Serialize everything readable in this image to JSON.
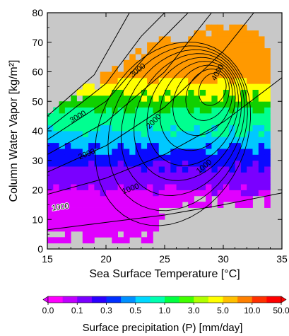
{
  "chart_data": {
    "type": "heatmap",
    "xlabel": "Sea Surface Temperature [°C]",
    "ylabel": "Column Water Vapor [kg/m²]",
    "xlim": [
      15,
      35
    ],
    "ylim": [
      0,
      80
    ],
    "x_ticks": [
      15,
      20,
      25,
      30,
      35
    ],
    "y_ticks": [
      0,
      10,
      20,
      30,
      40,
      50,
      60,
      70,
      80
    ],
    "background_color": "#c8c8c8",
    "grid": false,
    "shaded_field": {
      "variable": "Surface precipitation (P)",
      "description_of_pattern": "precipitation increases with column water vapor; <0.1 mm/day below ~20 kg/m2, rising through 1-3 mm/day near 40-50 kg/m2 to >10 mm/day above ~58 kg/m2",
      "cwv_thresholds_by_class": [
        {
          "class": "0.0-0.1",
          "cwv_min": 0
        },
        {
          "class": "0.1-0.3",
          "cwv_min": 20
        },
        {
          "class": "0.3-0.5",
          "cwv_min": 28
        },
        {
          "class": "0.5-1.0",
          "cwv_min": 34
        },
        {
          "class": "1.0-3.0",
          "cwv_min": 40
        },
        {
          "class": "3.0-5.0",
          "cwv_min": 47
        },
        {
          "class": "5.0-10.0",
          "cwv_min": 52
        },
        {
          "class": "10.0-50.0",
          "cwv_min": 57
        }
      ],
      "data_extent": "SST 15-34 °C; upper CWV limit ~47 kg/m2 at 15 °C rising to ~75 kg/m2 at 33 °C; data ends above ~25 °C at CWV < ~15 kg/m2"
    },
    "colorbar": {
      "label": "Surface precipitation (P) [mm/day]",
      "tick_labels": [
        "0.0",
        "0.1",
        "0.3",
        "0.5",
        "1.0",
        "3.0",
        "5.0",
        "10.0",
        "50.0"
      ],
      "colors": [
        "#e000ff",
        "#7a00ff",
        "#0a0aff",
        "#00c8ff",
        "#00ff90",
        "#10d000",
        "#ffff00",
        "#ff9900",
        "#ff0000"
      ]
    },
    "contours_relative_humidity_curves": [
      {
        "label": "1000",
        "points": [
          [
            15,
            6.5
          ],
          [
            20,
            9
          ],
          [
            25,
            11.5
          ],
          [
            30,
            15
          ],
          [
            35,
            19
          ]
        ]
      },
      {
        "label": "2000",
        "points": [
          [
            15,
            18.5
          ],
          [
            20,
            24
          ],
          [
            25,
            32
          ],
          [
            30,
            43
          ],
          [
            35,
            58
          ]
        ]
      },
      {
        "label": "3000",
        "points": [
          [
            15,
            26
          ],
          [
            20,
            35
          ],
          [
            25,
            48
          ],
          [
            30,
            67
          ],
          [
            33,
            82
          ]
        ]
      },
      {
        "label": "",
        "points": [
          [
            15,
            32
          ],
          [
            20,
            43
          ],
          [
            25,
            60
          ],
          [
            29,
            80
          ]
        ]
      },
      {
        "label": "",
        "points": [
          [
            15,
            37
          ],
          [
            20,
            50
          ],
          [
            24,
            68
          ],
          [
            27,
            80
          ]
        ]
      },
      {
        "label": "",
        "points": [
          [
            15,
            40.5
          ],
          [
            20,
            56
          ],
          [
            23,
            72
          ],
          [
            25,
            80
          ]
        ]
      },
      {
        "label": "",
        "points": [
          [
            15,
            45
          ],
          [
            19,
            59
          ],
          [
            22,
            80
          ]
        ]
      }
    ],
    "contours_frequency_labels": [
      "1000",
      "2000",
      "3000",
      "4000"
    ],
    "frequency_distribution_peak": {
      "sst": 29.5,
      "cwv": 56
    }
  }
}
